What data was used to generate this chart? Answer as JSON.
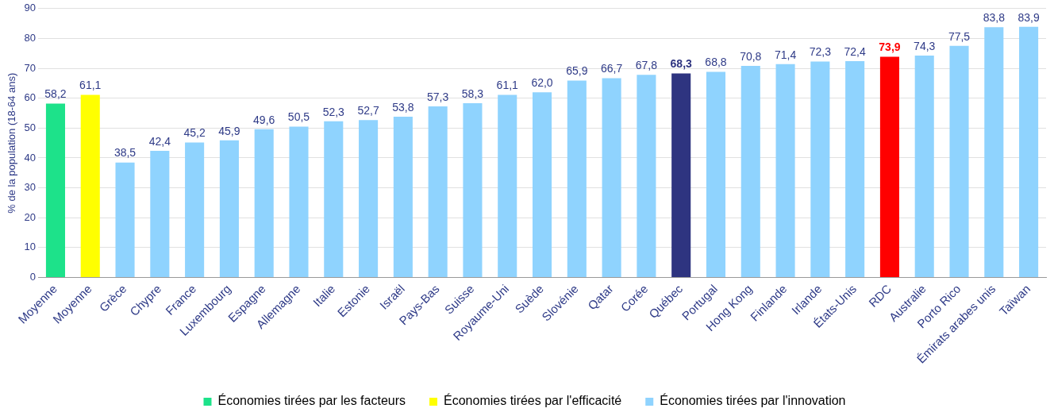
{
  "chart_data": {
    "type": "bar",
    "ylabel": "% de la population (18-64 ans)",
    "categories": [
      "Moyenne",
      "Moyenne",
      "Grèce",
      "Chypre",
      "France",
      "Luxembourg",
      "Espagne",
      "Allemagne",
      "Italie",
      "Estonie",
      "Israël",
      "Pays-Bas",
      "Suisse",
      "Royaume-Uni",
      "Suède",
      "Slovénie",
      "Qatar",
      "Corée",
      "Québec",
      "Portugal",
      "Hong Kong",
      "Finlande",
      "Irlande",
      "États-Unis",
      "RDC",
      "Australie",
      "Porto Rico",
      "Émirats arabes unis",
      "Taïwan"
    ],
    "series": [
      {
        "name": "Économies tirées par les facteurs",
        "color": "#1de28a",
        "values": [
          58.2,
          null,
          null,
          null,
          null,
          null,
          null,
          null,
          null,
          null,
          null,
          null,
          null,
          null,
          null,
          null,
          null,
          null,
          null,
          null,
          null,
          null,
          null,
          null,
          null,
          null,
          null,
          null,
          null
        ],
        "value_labels": [
          "58,2",
          null,
          null,
          null,
          null,
          null,
          null,
          null,
          null,
          null,
          null,
          null,
          null,
          null,
          null,
          null,
          null,
          null,
          null,
          null,
          null,
          null,
          null,
          null,
          null,
          null,
          null,
          null,
          null
        ]
      },
      {
        "name": "Économies tirées par l'efficacité",
        "color": "#ffff00",
        "values": [
          null,
          61.1,
          null,
          null,
          null,
          null,
          null,
          null,
          null,
          null,
          null,
          null,
          null,
          null,
          null,
          null,
          null,
          null,
          null,
          null,
          null,
          null,
          null,
          null,
          null,
          null,
          null,
          null,
          null
        ],
        "value_labels": [
          null,
          "61,1",
          null,
          null,
          null,
          null,
          null,
          null,
          null,
          null,
          null,
          null,
          null,
          null,
          null,
          null,
          null,
          null,
          null,
          null,
          null,
          null,
          null,
          null,
          null,
          null,
          null,
          null,
          null
        ]
      },
      {
        "name": "Économies tirées par l'innovation",
        "color": "#8fd3fe",
        "values": [
          null,
          null,
          38.5,
          42.4,
          45.2,
          45.9,
          49.6,
          50.5,
          52.3,
          52.7,
          53.8,
          57.3,
          58.3,
          61.1,
          62.0,
          65.9,
          66.7,
          67.8,
          68.3,
          68.8,
          70.8,
          71.4,
          72.3,
          72.4,
          73.9,
          74.3,
          77.5,
          83.8,
          83.9
        ],
        "colors": [
          "#8fd3fe",
          "#8fd3fe",
          "#8fd3fe",
          "#8fd3fe",
          "#8fd3fe",
          "#8fd3fe",
          "#8fd3fe",
          "#8fd3fe",
          "#8fd3fe",
          "#8fd3fe",
          "#8fd3fe",
          "#8fd3fe",
          "#8fd3fe",
          "#8fd3fe",
          "#8fd3fe",
          "#8fd3fe",
          "#8fd3fe",
          "#8fd3fe",
          "#2e3480",
          "#8fd3fe",
          "#8fd3fe",
          "#8fd3fe",
          "#8fd3fe",
          "#8fd3fe",
          "#ff0000",
          "#8fd3fe",
          "#8fd3fe",
          "#8fd3fe",
          "#8fd3fe"
        ],
        "value_labels": [
          null,
          null,
          "38,5",
          "42,4",
          "45,2",
          "45,9",
          "49,6",
          "50,5",
          "52,3",
          "52,7",
          "53,8",
          "57,3",
          "58,3",
          "61,1",
          "62,0",
          "65,9",
          "66,7",
          "67,8",
          "68,3",
          "68,8",
          "70,8",
          "71,4",
          "72,3",
          "72,4",
          "73,9",
          "74,3",
          "77,5",
          "83,8",
          "83,9"
        ]
      }
    ],
    "ylim": [
      0,
      90
    ],
    "yticks": [
      0,
      10,
      20,
      30,
      40,
      50,
      60,
      70,
      80,
      90
    ],
    "grid": "y",
    "legend": "bottom"
  }
}
